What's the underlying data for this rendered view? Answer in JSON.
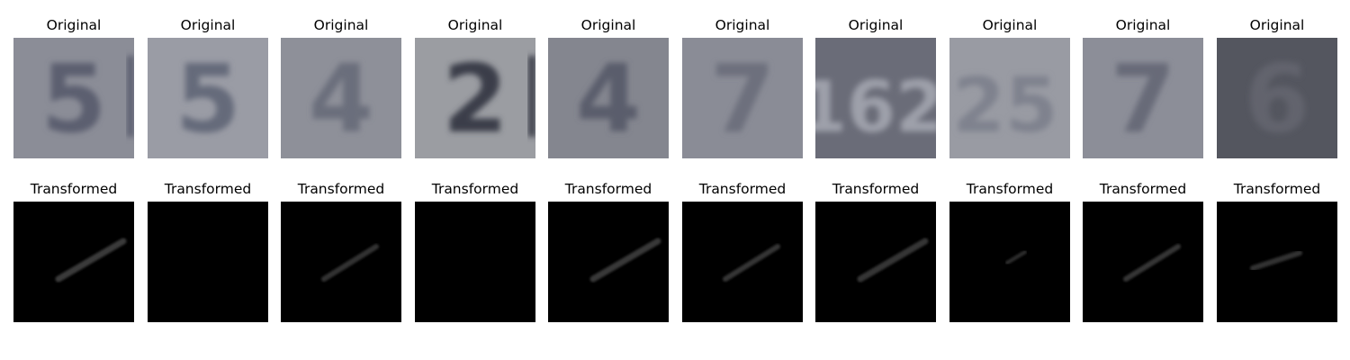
{
  "rows": [
    {
      "title": "Original",
      "images": [
        {
          "digit": "5",
          "bg": "#8b8d97",
          "ink": "#5b5f70",
          "extra": "|"
        },
        {
          "digit": "5",
          "bg": "#9a9ca5",
          "ink": "#656a7a",
          "extra": ""
        },
        {
          "digit": "4",
          "bg": "#8e9099",
          "ink": "#6b6e7b",
          "extra": ""
        },
        {
          "digit": "2",
          "bg": "#9b9da2",
          "ink": "#3b3e4a",
          "extra": "|"
        },
        {
          "digit": "4",
          "bg": "#84868f",
          "ink": "#5a5d6c",
          "extra": ""
        },
        {
          "digit": "7",
          "bg": "#8a8c96",
          "ink": "#6d707d",
          "extra": ""
        },
        {
          "digit": "162",
          "bg": "#6a6c78",
          "ink": "#9ea0aa",
          "extra": ""
        },
        {
          "digit": "25",
          "bg": "#999ba3",
          "ink": "#7f828e",
          "extra": ""
        },
        {
          "digit": "7",
          "bg": "#8c8e98",
          "ink": "#676a78",
          "extra": ""
        },
        {
          "digit": "6",
          "bg": "#54565f",
          "ink": "#62646d",
          "extra": ""
        }
      ]
    },
    {
      "title": "Transformed",
      "images": [
        {
          "streak": "long",
          "bg": "#000000",
          "ink": "#3a3a3a"
        },
        {
          "streak": "none",
          "bg": "#000000",
          "ink": "#000000"
        },
        {
          "streak": "medium",
          "bg": "#000000",
          "ink": "#333333"
        },
        {
          "streak": "none",
          "bg": "#000000",
          "ink": "#000000"
        },
        {
          "streak": "long",
          "bg": "#000000",
          "ink": "#383838"
        },
        {
          "streak": "medium",
          "bg": "#000000",
          "ink": "#353535"
        },
        {
          "streak": "long",
          "bg": "#000000",
          "ink": "#363636"
        },
        {
          "streak": "short",
          "bg": "#000000",
          "ink": "#2e2e2e"
        },
        {
          "streak": "medium",
          "bg": "#000000",
          "ink": "#343434"
        },
        {
          "streak": "small",
          "bg": "#000000",
          "ink": "#323232"
        }
      ]
    }
  ]
}
